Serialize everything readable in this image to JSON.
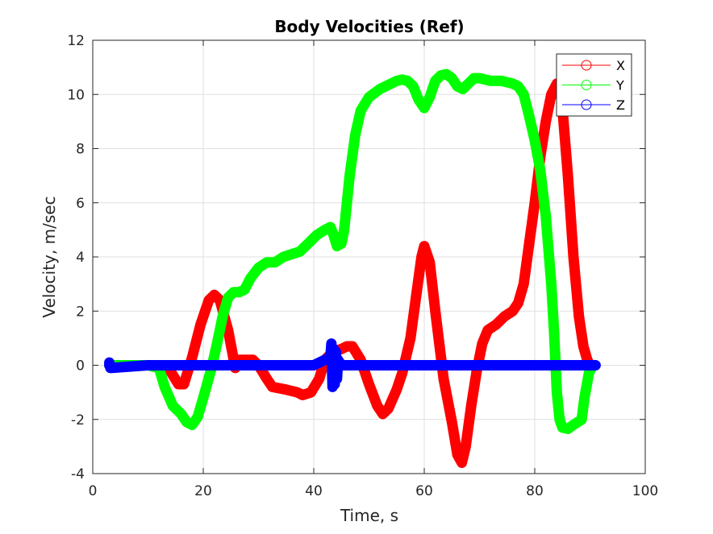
{
  "chart_data": {
    "type": "line",
    "title": "Body Velocities (Ref)",
    "xlabel": "Time, s",
    "ylabel": "Velocity, m/sec",
    "xlim": [
      0,
      100
    ],
    "ylim": [
      -4,
      12
    ],
    "xticks": [
      0,
      20,
      40,
      60,
      80,
      100
    ],
    "yticks": [
      -4,
      -2,
      0,
      2,
      4,
      6,
      8,
      10,
      12
    ],
    "grid": true,
    "legend_position": "top-right",
    "marker": "circle",
    "series": [
      {
        "name": "X",
        "color": "#ff0000",
        "points": [
          [
            3,
            0
          ],
          [
            12,
            0
          ],
          [
            14,
            -0.2
          ],
          [
            15.5,
            -0.7
          ],
          [
            16.5,
            -0.7
          ],
          [
            18,
            0.3
          ],
          [
            19.5,
            1.5
          ],
          [
            21,
            2.4
          ],
          [
            22,
            2.6
          ],
          [
            23,
            2.4
          ],
          [
            24.5,
            1.3
          ],
          [
            25.8,
            -0.1
          ],
          [
            26.5,
            0.2
          ],
          [
            29,
            0.2
          ],
          [
            30,
            0
          ],
          [
            31.5,
            -0.5
          ],
          [
            32.5,
            -0.8
          ],
          [
            35,
            -0.9
          ],
          [
            37,
            -1
          ],
          [
            38,
            -1.1
          ],
          [
            39.5,
            -1
          ],
          [
            41,
            -0.5
          ],
          [
            42,
            0.2
          ],
          [
            43.5,
            0.5
          ],
          [
            45,
            0.6
          ],
          [
            46,
            0.7
          ],
          [
            47,
            0.7
          ],
          [
            48.5,
            0.2
          ],
          [
            50,
            -0.7
          ],
          [
            51.5,
            -1.5
          ],
          [
            52.5,
            -1.8
          ],
          [
            53.5,
            -1.6
          ],
          [
            55,
            -0.9
          ],
          [
            56,
            -0.3
          ],
          [
            57.5,
            1
          ],
          [
            58.5,
            2.5
          ],
          [
            59.5,
            4
          ],
          [
            60,
            4.4
          ],
          [
            61,
            3.8
          ],
          [
            62,
            2
          ],
          [
            63.5,
            -0.5
          ],
          [
            65,
            -2.1
          ],
          [
            66,
            -3.3
          ],
          [
            66.8,
            -3.6
          ],
          [
            67.5,
            -3
          ],
          [
            68.5,
            -1.5
          ],
          [
            69.5,
            -0.2
          ],
          [
            70.5,
            0.8
          ],
          [
            71.5,
            1.3
          ],
          [
            73,
            1.5
          ],
          [
            74.5,
            1.8
          ],
          [
            76,
            2
          ],
          [
            77,
            2.3
          ],
          [
            78,
            3
          ],
          [
            79,
            4.5
          ],
          [
            80,
            6
          ],
          [
            81,
            7.7
          ],
          [
            82,
            9
          ],
          [
            83,
            10
          ],
          [
            84,
            10.4
          ],
          [
            84.5,
            10.3
          ],
          [
            85,
            9.5
          ],
          [
            86,
            7
          ],
          [
            87,
            4
          ],
          [
            88,
            1.8
          ],
          [
            88.8,
            0.7
          ],
          [
            89.5,
            0.2
          ],
          [
            90,
            0
          ]
        ]
      },
      {
        "name": "Y",
        "color": "#00ff00",
        "points": [
          [
            3,
            0
          ],
          [
            10,
            0
          ],
          [
            12,
            -0.1
          ],
          [
            13,
            -0.8
          ],
          [
            14.5,
            -1.5
          ],
          [
            16,
            -1.8
          ],
          [
            17,
            -2.1
          ],
          [
            18,
            -2.2
          ],
          [
            19,
            -1.9
          ],
          [
            20,
            -1.2
          ],
          [
            21.5,
            -0.1
          ],
          [
            22.5,
            0.8
          ],
          [
            23.5,
            1.8
          ],
          [
            24.5,
            2.5
          ],
          [
            25.5,
            2.7
          ],
          [
            26.5,
            2.7
          ],
          [
            27.5,
            2.8
          ],
          [
            28.5,
            3.2
          ],
          [
            30,
            3.6
          ],
          [
            31.5,
            3.8
          ],
          [
            33,
            3.8
          ],
          [
            34.5,
            4
          ],
          [
            36,
            4.1
          ],
          [
            37.5,
            4.2
          ],
          [
            39,
            4.5
          ],
          [
            40.5,
            4.8
          ],
          [
            42,
            5
          ],
          [
            43,
            5.1
          ],
          [
            43.6,
            4.8
          ],
          [
            44.2,
            4.4
          ],
          [
            45,
            4.5
          ],
          [
            45.5,
            5
          ],
          [
            46,
            6
          ],
          [
            46.5,
            7
          ],
          [
            47.5,
            8.5
          ],
          [
            48.5,
            9.4
          ],
          [
            50,
            9.9
          ],
          [
            52,
            10.2
          ],
          [
            54,
            10.4
          ],
          [
            55,
            10.5
          ],
          [
            56,
            10.55
          ],
          [
            57,
            10.5
          ],
          [
            58,
            10.3
          ],
          [
            59,
            9.8
          ],
          [
            60,
            9.5
          ],
          [
            61,
            9.9
          ],
          [
            62,
            10.5
          ],
          [
            63,
            10.7
          ],
          [
            64,
            10.75
          ],
          [
            65,
            10.6
          ],
          [
            66,
            10.3
          ],
          [
            67,
            10.2
          ],
          [
            68,
            10.4
          ],
          [
            69,
            10.6
          ],
          [
            70,
            10.6
          ],
          [
            72,
            10.5
          ],
          [
            74,
            10.5
          ],
          [
            76,
            10.4
          ],
          [
            77,
            10.3
          ],
          [
            78,
            10
          ],
          [
            79,
            9.2
          ],
          [
            80,
            8.3
          ],
          [
            81,
            7.2
          ],
          [
            82,
            5.5
          ],
          [
            83,
            3
          ],
          [
            83.5,
            1.2
          ],
          [
            84,
            -1
          ],
          [
            84.5,
            -2
          ],
          [
            85,
            -2.3
          ],
          [
            86,
            -2.35
          ],
          [
            87,
            -2.2
          ],
          [
            88.5,
            -2
          ],
          [
            89,
            -1.2
          ],
          [
            89.8,
            -0.3
          ],
          [
            90.5,
            0
          ]
        ]
      },
      {
        "name": "Z",
        "color": "#0000ff",
        "points": [
          [
            3,
            0
          ],
          [
            3,
            0.1
          ],
          [
            3.2,
            -0.1
          ],
          [
            10,
            0
          ],
          [
            20,
            0
          ],
          [
            30,
            0
          ],
          [
            40,
            0
          ],
          [
            43,
            0.3
          ],
          [
            43.2,
            0.8
          ],
          [
            43.4,
            -0.8
          ],
          [
            43.6,
            0.6
          ],
          [
            43.8,
            -0.7
          ],
          [
            44,
            0.5
          ],
          [
            44.2,
            -0.5
          ],
          [
            44.4,
            0.2
          ],
          [
            45,
            0
          ],
          [
            50,
            0
          ],
          [
            60,
            0
          ],
          [
            70,
            0
          ],
          [
            80,
            0
          ],
          [
            90,
            0
          ],
          [
            91,
            0
          ]
        ]
      }
    ]
  }
}
